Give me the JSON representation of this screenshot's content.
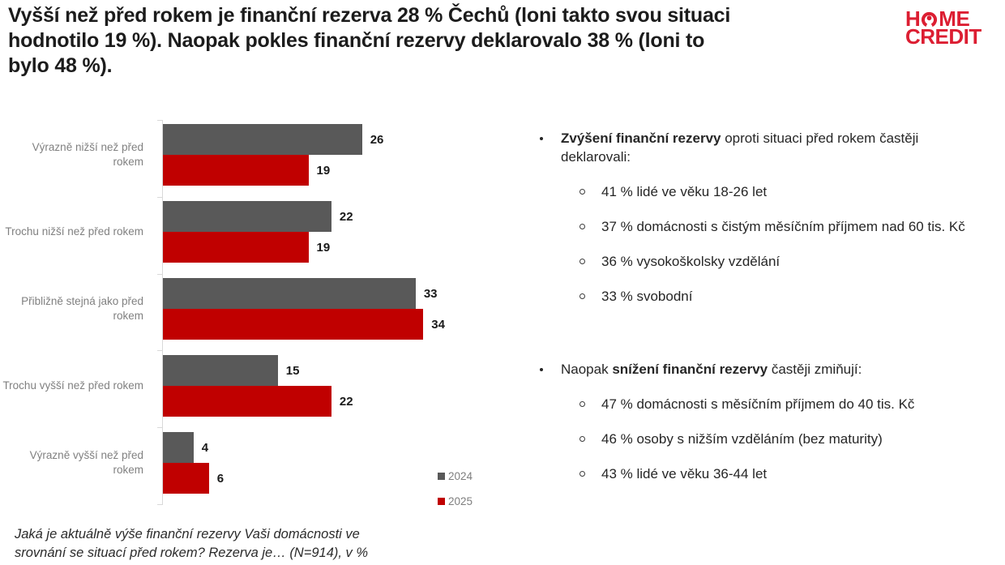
{
  "header": {
    "title_lines": [
      "Vyšší než před rokem je finanční rezerva 28 % Čechů (loni takto svou situaci",
      "hodnotilo 19 %). Naopak pokles finanční rezervy deklarovalo 38 % (loni to",
      "bylo 48 %)."
    ],
    "logo": {
      "line1_pre": "H",
      "line1_post": "ME",
      "line2": "CREDIT",
      "color": "#dc1e32"
    }
  },
  "chart_data": {
    "type": "bar",
    "orientation": "horizontal",
    "title": "",
    "categories": [
      "Výrazně nižší než před rokem",
      "Trochu nižší než před rokem",
      "Přibližně stejná jako před rokem",
      "Trochu vyšší než před rokem",
      "Výrazně vyšší než před rokem"
    ],
    "series": [
      {
        "name": "2024",
        "color": "#595959",
        "values": [
          26,
          22,
          33,
          15,
          4
        ]
      },
      {
        "name": "2025",
        "color": "#c00000",
        "values": [
          19,
          19,
          34,
          22,
          6
        ]
      }
    ],
    "xlim": [
      0,
      40
    ],
    "value_labels": true,
    "grid": false,
    "legend_position": "bottom-right",
    "footnote_lines": [
      "Jaká je aktuálně výše finanční rezervy Vaši domácnosti ve",
      "srovnání se situací před rokem? Rezerva je… (N=914), v %"
    ]
  },
  "right_panel": {
    "bullets": [
      {
        "lead_pre": "",
        "lead_bold": "Zvýšení finanční rezervy",
        "lead_rest": " oproti situaci před rokem častěji deklarovali:",
        "sub_items": [
          "41 % lidé ve věku 18-26 let",
          "37 % domácnosti s čistým měsíčním příjmem nad 60 tis. Kč",
          "36 % vysokoškolsky vzdělání",
          "33 % svobodní"
        ]
      },
      {
        "lead_pre": "Naopak ",
        "lead_bold": "snížení finanční rezervy",
        "lead_rest": " častěji zmiňují:",
        "sub_items": [
          "47 % domácnosti s měsíčním příjmem do 40 tis. Kč",
          "46 % osoby s nižším vzděláním (bez maturity)",
          "43 % lidé ve věku 36-44 let"
        ]
      }
    ]
  }
}
